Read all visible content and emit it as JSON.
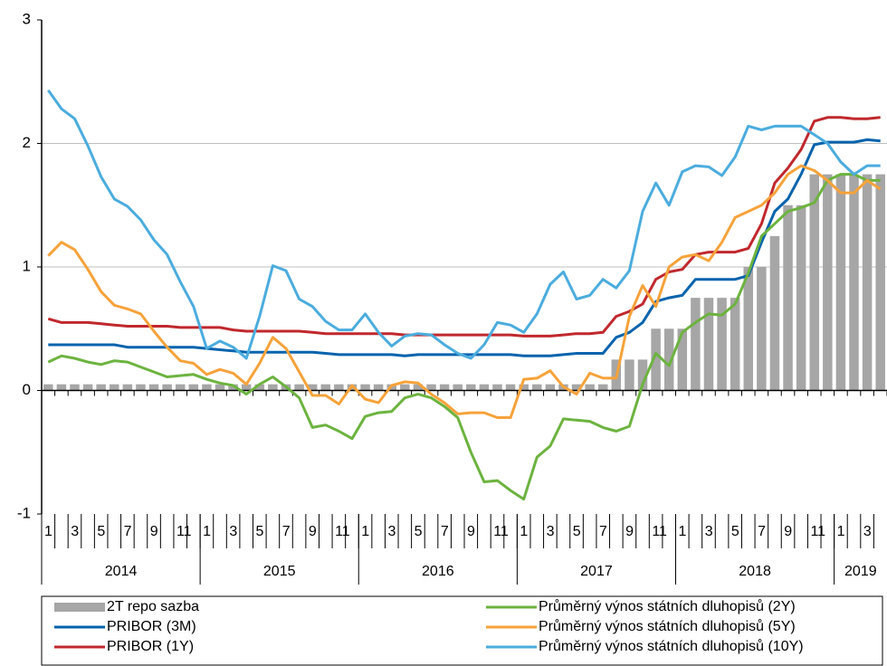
{
  "chart_data": {
    "type": "combo",
    "categories": [
      "1",
      null,
      "3",
      null,
      "5",
      null,
      "7",
      null,
      "9",
      null,
      "11",
      null,
      "1",
      null,
      "3",
      null,
      "5",
      null,
      "7",
      null,
      "9",
      null,
      "11",
      null,
      "1",
      null,
      "3",
      null,
      "5",
      null,
      "7",
      null,
      "9",
      null,
      "11",
      null,
      "1",
      null,
      "3",
      null,
      "5",
      null,
      "7",
      null,
      "9",
      null,
      "11",
      null,
      "1",
      null,
      "3",
      null,
      "5",
      null,
      "7",
      null,
      "9",
      null,
      "11",
      null,
      "1",
      null,
      "3",
      null
    ],
    "years": [
      "2014",
      "2015",
      "2016",
      "2017",
      "2018",
      "2019"
    ],
    "ylim": [
      -1,
      3
    ],
    "yticks": [
      -1,
      0,
      1,
      2,
      3
    ],
    "grid": true,
    "series": [
      {
        "name": "2T repo sazba",
        "type": "bar",
        "color": "#a6a6a6",
        "values": [
          0.05,
          0.05,
          0.05,
          0.05,
          0.05,
          0.05,
          0.05,
          0.05,
          0.05,
          0.05,
          0.05,
          0.05,
          0.05,
          0.05,
          0.05,
          0.05,
          0.05,
          0.05,
          0.05,
          0.05,
          0.05,
          0.05,
          0.05,
          0.05,
          0.05,
          0.05,
          0.05,
          0.05,
          0.05,
          0.05,
          0.05,
          0.05,
          0.05,
          0.05,
          0.05,
          0.05,
          0.05,
          0.05,
          0.05,
          0.05,
          0.05,
          0.05,
          0.05,
          0.25,
          0.25,
          0.25,
          0.5,
          0.5,
          0.5,
          0.75,
          0.75,
          0.75,
          0.75,
          1.0,
          1.0,
          1.25,
          1.5,
          1.5,
          1.75,
          1.75,
          1.75,
          1.75,
          1.75,
          1.75
        ]
      },
      {
        "name": "PRIBOR (3M)",
        "type": "line",
        "color": "#0563ad",
        "values": [
          0.37,
          0.37,
          0.37,
          0.37,
          0.37,
          0.37,
          0.35,
          0.35,
          0.35,
          0.35,
          0.35,
          0.35,
          0.34,
          0.33,
          0.32,
          0.31,
          0.31,
          0.31,
          0.31,
          0.31,
          0.31,
          0.3,
          0.29,
          0.29,
          0.29,
          0.29,
          0.29,
          0.28,
          0.29,
          0.29,
          0.29,
          0.29,
          0.29,
          0.29,
          0.29,
          0.29,
          0.28,
          0.28,
          0.28,
          0.29,
          0.3,
          0.3,
          0.3,
          0.43,
          0.47,
          0.55,
          0.72,
          0.75,
          0.77,
          0.9,
          0.9,
          0.9,
          0.9,
          0.93,
          1.2,
          1.45,
          1.55,
          1.75,
          1.99,
          2.01,
          2.01,
          2.01,
          2.03,
          2.02
        ]
      },
      {
        "name": "PRIBOR (1Y)",
        "type": "line",
        "color": "#c0282d",
        "values": [
          0.58,
          0.55,
          0.55,
          0.55,
          0.54,
          0.53,
          0.52,
          0.52,
          0.52,
          0.52,
          0.51,
          0.51,
          0.51,
          0.51,
          0.49,
          0.48,
          0.48,
          0.48,
          0.48,
          0.48,
          0.47,
          0.46,
          0.46,
          0.46,
          0.46,
          0.46,
          0.46,
          0.45,
          0.45,
          0.45,
          0.45,
          0.45,
          0.45,
          0.45,
          0.45,
          0.45,
          0.44,
          0.44,
          0.44,
          0.45,
          0.46,
          0.46,
          0.47,
          0.6,
          0.64,
          0.7,
          0.9,
          0.96,
          0.98,
          1.1,
          1.12,
          1.12,
          1.12,
          1.15,
          1.35,
          1.68,
          1.8,
          1.95,
          2.18,
          2.21,
          2.21,
          2.2,
          2.2,
          2.21
        ]
      },
      {
        "name": "Průměrný výnos státních dluhopisů (2Y)",
        "type": "line",
        "color": "#6cb33f",
        "values": [
          0.23,
          0.28,
          0.26,
          0.23,
          0.21,
          0.24,
          0.23,
          0.19,
          0.15,
          0.11,
          0.12,
          0.13,
          0.09,
          0.06,
          0.04,
          -0.03,
          0.05,
          0.11,
          0.03,
          -0.06,
          -0.3,
          -0.28,
          -0.33,
          -0.39,
          -0.21,
          -0.18,
          -0.17,
          -0.06,
          -0.03,
          -0.06,
          -0.13,
          -0.22,
          -0.5,
          -0.74,
          -0.73,
          -0.81,
          -0.88,
          -0.54,
          -0.45,
          -0.23,
          -0.24,
          -0.25,
          -0.3,
          -0.33,
          -0.29,
          0.05,
          0.3,
          0.2,
          0.47,
          0.55,
          0.62,
          0.61,
          0.7,
          0.95,
          1.25,
          1.35,
          1.45,
          1.48,
          1.52,
          1.7,
          1.75,
          1.75,
          1.7,
          1.7
        ]
      },
      {
        "name": "Průměrný výnos státních dluhopisů (5Y)",
        "type": "line",
        "color": "#f6a23a",
        "values": [
          1.09,
          1.2,
          1.14,
          0.98,
          0.8,
          0.69,
          0.66,
          0.62,
          0.48,
          0.35,
          0.24,
          0.22,
          0.13,
          0.17,
          0.14,
          0.05,
          0.22,
          0.43,
          0.34,
          0.15,
          -0.04,
          -0.04,
          -0.11,
          0.04,
          -0.07,
          -0.1,
          0.04,
          0.07,
          0.06,
          -0.03,
          -0.1,
          -0.19,
          -0.18,
          -0.18,
          -0.22,
          -0.22,
          0.09,
          0.1,
          0.16,
          0.03,
          -0.03,
          0.14,
          0.1,
          0.1,
          0.6,
          0.85,
          0.68,
          1.0,
          1.08,
          1.1,
          1.05,
          1.2,
          1.4,
          1.45,
          1.5,
          1.6,
          1.75,
          1.82,
          1.78,
          1.7,
          1.6,
          1.6,
          1.7,
          1.63
        ]
      },
      {
        "name": "Průměrný výnos státních dluhopisů (10Y)",
        "type": "line",
        "color": "#4bacde",
        "values": [
          2.43,
          2.28,
          2.2,
          1.98,
          1.73,
          1.55,
          1.49,
          1.38,
          1.22,
          1.1,
          0.88,
          0.68,
          0.34,
          0.4,
          0.35,
          0.26,
          0.6,
          1.01,
          0.97,
          0.74,
          0.68,
          0.56,
          0.49,
          0.49,
          0.62,
          0.47,
          0.36,
          0.44,
          0.46,
          0.45,
          0.37,
          0.3,
          0.26,
          0.37,
          0.55,
          0.53,
          0.47,
          0.62,
          0.86,
          0.96,
          0.74,
          0.77,
          0.9,
          0.83,
          0.97,
          1.45,
          1.68,
          1.5,
          1.77,
          1.82,
          1.81,
          1.74,
          1.89,
          2.14,
          2.11,
          2.14,
          2.14,
          2.14,
          2.07,
          2.0,
          1.85,
          1.75,
          1.82,
          1.82
        ]
      }
    ]
  }
}
